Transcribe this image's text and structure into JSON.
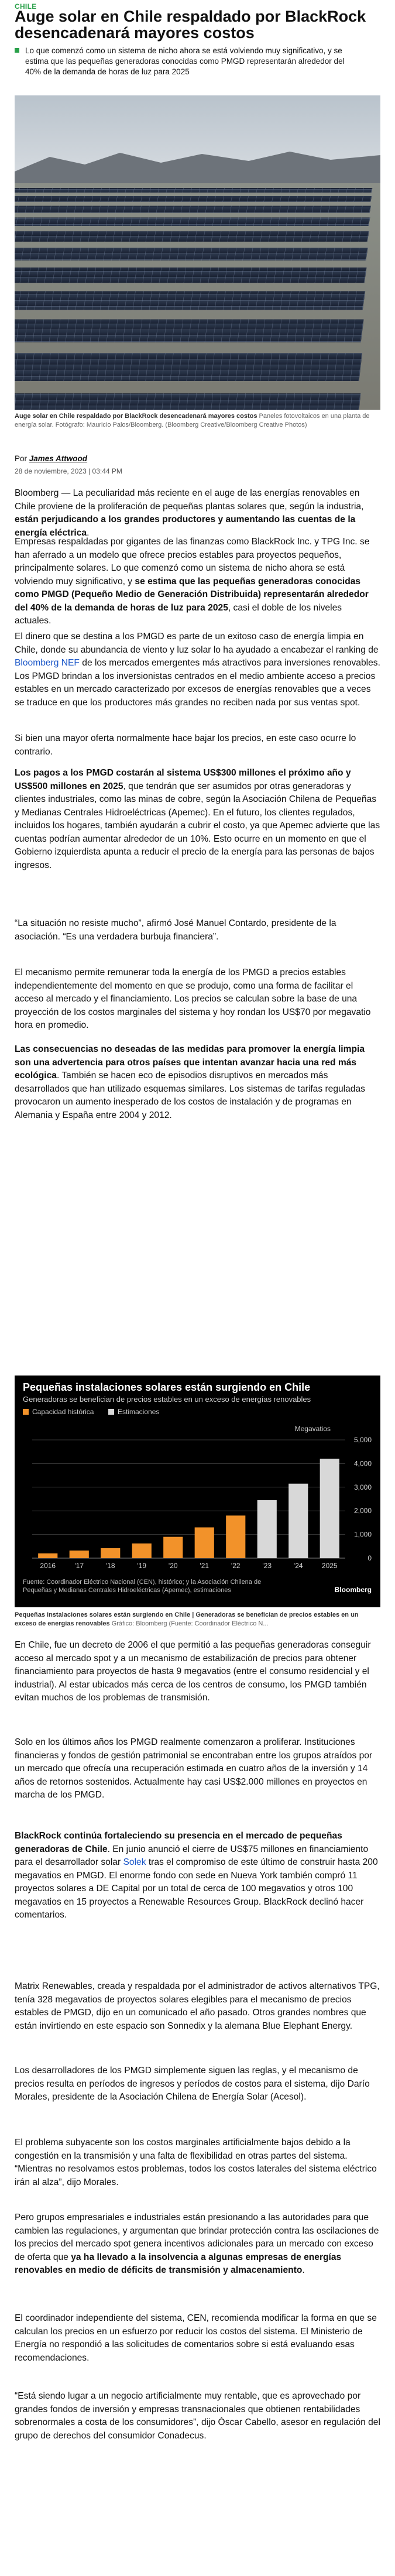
{
  "section": "CHILE",
  "headline": "Auge solar en Chile respaldado por BlackRock desencadenará mayores costos",
  "deck": "Lo que comenzó como un sistema de nicho ahora se está volviendo muy significativo, y se estima que las pequeñas generadoras conocidas como PMGD representarán alrededor del 40% de la demanda de horas de luz para 2025",
  "hero_caption": {
    "bold": "Auge solar en Chile respaldado por BlackRock desencadenará mayores costos",
    "rest": " Paneles fotovoltaicos en una planta de energía solar. Fotógrafo: Mauricio Palos/Bloomberg. (Bloomberg Creative/Bloomberg Creative Photos)"
  },
  "byline": {
    "prefix": "Por ",
    "author": "James Attwood"
  },
  "date": "28 de noviembre, 2023 | 03:44 PM",
  "paragraphs": {
    "p1": {
      "a": "Bloomberg — La peculiaridad más reciente en el auge de las energías renovables en Chile proviene de la proliferación de pequeñas plantas solares que, según la industria, ",
      "b": "están perjudicando a los grandes productores y aumentando las cuentas de la energía eléctrica",
      "c": "."
    },
    "p2": {
      "a": "Empresas respaldadas por gigantes de las finanzas como BlackRock Inc. y TPG Inc. se han aferrado a un modelo que ofrece precios estables para proyectos pequeños, principalmente solares. Lo que comenzó como un sistema de nicho ahora se está volviendo muy significativo, y ",
      "b": "se estima que las pequeñas generadoras conocidas como PMGD (Pequeño Medio de Generación Distribuida) representarán alrededor del 40% de la demanda de horas de luz para 2025",
      "c": ", casi el doble de los niveles actuales."
    },
    "p3": {
      "a": "El dinero que se destina a los PMGD es parte de un exitoso caso de energía limpia en Chile, donde su abundancia de viento y luz solar lo ha ayudado a encabezar el ranking de ",
      "link": "Bloomberg NEF",
      "c": " de los mercados emergentes más atractivos para inversiones renovables. Los PMGD brindan a los inversionistas centrados en el medio ambiente acceso a precios estables en un mercado caracterizado por excesos de energías renovables que a veces se traduce en que los productores más grandes no reciben nada por sus ventas spot."
    },
    "p4": {
      "a": "Si bien una mayor oferta normalmente hace bajar los precios, en este caso ocurre lo contrario."
    },
    "p5": {
      "b": "Los pagos a los PMGD costarán al sistema US$300 millones el próximo año y US$500 millones en 2025",
      "c": ", que tendrán que ser asumidos por otras generadoras y clientes industriales, como las minas de cobre, según la Asociación Chilena de Pequeñas y Medianas Centrales Hidroeléctricas (Apemec). En el futuro, los clientes regulados, incluidos los hogares, también ayudarán a cubrir el costo, ya que Apemec advierte que las cuentas podrían aumentar alrededor de un 10%. Esto ocurre en un momento en que el Gobierno izquierdista apunta a reducir el precio de la energía para las personas de bajos ingresos."
    },
    "p6": {
      "a": "“La situación no resiste mucho”, afirmó José Manuel Contardo, presidente de la asociación. “Es una verdadera burbuja financiera”."
    },
    "p7": {
      "a": "El mecanismo permite remunerar toda la energía de los PMGD a precios estables independientemente del momento en que se produjo, como una forma de facilitar el acceso al mercado y el financiamiento. Los precios se calculan sobre la base de una proyección de los costos marginales del sistema y hoy rondan los US$70 por megavatio hora en promedio."
    },
    "p8": {
      "b": "Las consecuencias no deseadas de las medidas para promover la energía limpia son una advertencia para otros países que intentan avanzar hacia una red más ecológica",
      "c": ". También se hacen eco de episodios disruptivos en mercados más desarrollados que han utilizado esquemas similares. Los sistemas de tarifas reguladas provocaron un aumento inesperado de los costos de instalación y de programas en Alemania y España entre 2004 y 2012."
    },
    "p9": {
      "a": "En Chile, fue un decreto de 2006 el que permitió a las pequeñas generadoras conseguir acceso al mercado spot y a un mecanismo de estabilización de precios para obtener financiamiento para proyectos de hasta 9 megavatios (entre el consumo residencial y el industrial). Al estar ubicados más cerca de los centros de consumo, los PMGD también evitan muchos de los problemas de transmisión."
    },
    "p10": {
      "a": "Solo en los últimos años los PMGD realmente comenzaron a proliferar. Instituciones financieras y fondos de gestión patrimonial se encontraban entre los grupos atraídos por un mercado que ofrecía una recuperación estimada en cuatro años de la inversión y 14 años de retornos sostenidos. Actualmente hay casi US$2.000 millones en proyectos en marcha de los PMGD."
    },
    "p11": {
      "b": "BlackRock continúa fortaleciendo su presencia en el mercado de pequeñas generadoras de Chile",
      "a": ". En junio anunció el cierre de US$75 millones en financiamiento para el desarrollador solar ",
      "link": "Solek",
      "c": " tras el compromiso de este último de construir hasta 200 megavatios en PMGD. El enorme fondo con sede en Nueva York también compró 11 proyectos solares a DE Capital por un total de cerca de 100 megavatios y otros 100 megavatios en 15 proyectos a Renewable Resources Group. BlackRock declinó hacer comentarios."
    },
    "p12": {
      "a": "Matrix Renewables, creada y respaldada por el administrador de activos alternativos TPG, tenía 328 megavatios de proyectos solares elegibles para el mecanismo de precios estables de PMGD, dijo en un comunicado el año pasado. Otros grandes nombres que están invirtiendo en este espacio son Sonnedix y la alemana Blue Elephant Energy."
    },
    "p13": {
      "a": "Los desarrolladores de los PMGD simplemente siguen las reglas, y el mecanismo de precios resulta en períodos de ingresos y períodos de costos para el sistema, dijo Darío Morales, presidente de la Asociación Chilena de Energía Solar (Acesol)."
    },
    "p14": {
      "a": "El problema subyacente son los costos marginales artificialmente bajos debido a la congestión en la transmisión y una falta de flexibilidad en otras partes del sistema. “Mientras no resolvamos estos problemas, todos los costos laterales del sistema eléctrico irán al alza”, dijo Morales."
    },
    "p15": {
      "a": "Pero grupos empresariales e industriales están presionando a las autoridades para que cambien las regulaciones, y argumentan que brindar protección contra las oscilaciones de los precios del mercado spot genera incentivos adicionales para un mercado con exceso de oferta que ",
      "b": "ya ha llevado a la insolvencia a algunas empresas de energías renovables en medio de déficits de transmisión y almacenamiento",
      "c": "."
    },
    "p16": {
      "a": "El coordinador independiente del sistema, CEN, recomienda modificar la forma en que se calculan los precios en un esfuerzo por reducir los costos del sistema. El Ministerio de Energía no respondió a las solicitudes de comentarios sobre si está evaluando esas recomendaciones."
    },
    "p17": {
      "a": "“Está siendo lugar a un negocio artificialmente muy rentable, que es aprovechado por grandes fondos de inversión y empresas transnacionales que obtienen rentabilidades sobrenormales a costa de los consumidores”, dijo Óscar Cabello, asesor en regulación del grupo de derechos del consumidor Conadecus."
    }
  },
  "chart_caption": {
    "bold": "Pequeñas instalaciones solares están surgiendo en Chile | Generadoras se benefician de precios estables en un exceso de energías renovables",
    "rest": " Gráfico: Bloomberg (Fuente: Coordinador Eléctrico N..."
  },
  "chart_data": {
    "type": "bar",
    "title": "Pequeñas instalaciones solares están surgiendo en Chile",
    "subtitle": "Generadoras se benefician de precios estables en un exceso de energías renovables",
    "legend": [
      "Capacidad histórica",
      "Estimaciones"
    ],
    "unit_label": "Megavatios",
    "categories": [
      "2016",
      "'17",
      "'18",
      "'19",
      "'20",
      "'21",
      "'22",
      "'23",
      "'24",
      "2025"
    ],
    "series": [
      {
        "name": "Capacidad histórica",
        "values": [
          200,
          320,
          420,
          620,
          900,
          1300,
          1800,
          null,
          null,
          null
        ]
      },
      {
        "name": "Estimaciones",
        "values": [
          null,
          null,
          null,
          null,
          null,
          null,
          null,
          2450,
          3150,
          4200
        ]
      }
    ],
    "y_ticks": [
      "0",
      "1,000",
      "2,000",
      "3,000",
      "4,000",
      "5,000"
    ],
    "ylim": [
      0,
      5000
    ],
    "source": "Fuente: Coordinador Eléctrico Nacional (CEN), histórico; y la Asociación Chilena de Pequeñas y Medianas Centrales Hidroeléctricas (Apemec), estimaciones",
    "brand": "Bloomberg",
    "colors": {
      "historic": "#f2922a",
      "estimate": "#d8d8d8",
      "background": "#000000"
    }
  }
}
